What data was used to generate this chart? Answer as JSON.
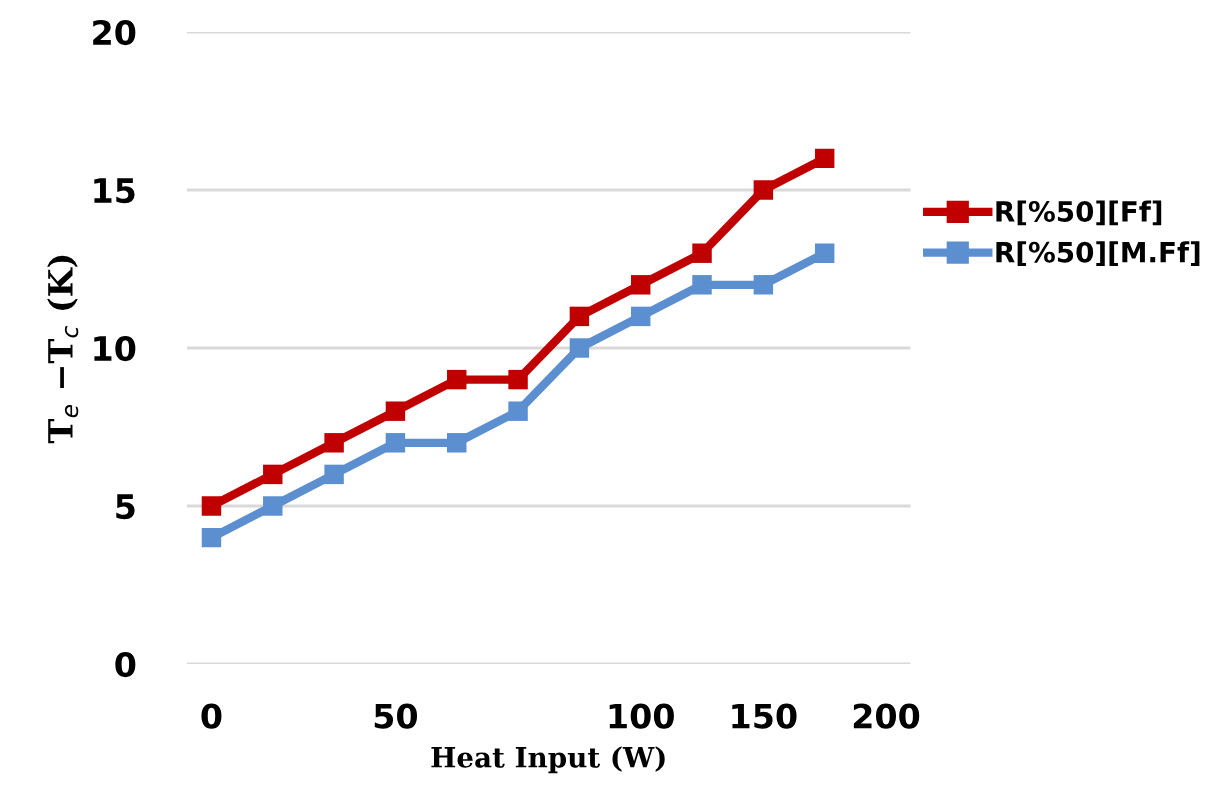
{
  "chart_data": {
    "type": "line",
    "xlabel": "Heat Input (W)",
    "ylabel": "T$_{e}$ −T$_{c}$ (K)",
    "categories": [
      "0",
      null,
      null,
      "50",
      null,
      null,
      null,
      "100",
      null,
      "150",
      null,
      "200"
    ],
    "series": [
      {
        "name": "R[%50][Ff]",
        "color": "#c00000",
        "values": [
          5,
          6,
          7,
          8,
          9,
          9,
          11,
          12,
          13,
          15,
          16,
          null
        ]
      },
      {
        "name": "R[%50][M.Ff]",
        "color": "#5b8fd0",
        "values": [
          4,
          5,
          6,
          7,
          7,
          8,
          10,
          11,
          12,
          12,
          13,
          null
        ]
      }
    ],
    "ylim": [
      0,
      20
    ],
    "yticks": [
      0,
      5,
      10,
      15,
      20
    ],
    "grid": "y",
    "legend": "right",
    "marker": "square",
    "line_style": "solid"
  }
}
